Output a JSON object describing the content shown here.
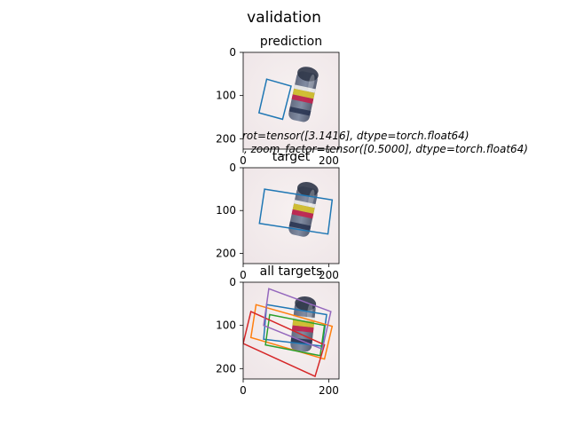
{
  "figure": {
    "suptitle": "validation",
    "annotation_line1": "rot=tensor([3.1416], dtype=torch.float64)",
    "annotation_line2": ", zoom_factor=tensor([0.5000], dtype=torch.float64)"
  },
  "chart_data": [
    {
      "type": "image",
      "title": "prediction",
      "xlim": [
        0,
        224
      ],
      "ylim": [
        224,
        0
      ],
      "xticks": [
        0,
        200
      ],
      "yticks": [
        0,
        100,
        200
      ],
      "boxes": [
        {
          "color": "#1f77b4",
          "points": [
            [
              55,
              62
            ],
            [
              112,
              78
            ],
            [
              92,
              155
            ],
            [
              37,
              140
            ]
          ]
        }
      ]
    },
    {
      "type": "image",
      "title": "target",
      "xlim": [
        0,
        224
      ],
      "ylim": [
        224,
        0
      ],
      "xticks": [
        0,
        200
      ],
      "yticks": [
        0,
        100,
        200
      ],
      "boxes": [
        {
          "color": "#1f77b4",
          "points": [
            [
              50,
              50
            ],
            [
              208,
              75
            ],
            [
              198,
              155
            ],
            [
              38,
              130
            ]
          ]
        }
      ]
    },
    {
      "type": "image",
      "title": "all targets",
      "xlim": [
        0,
        224
      ],
      "ylim": [
        224,
        0
      ],
      "xticks": [
        0,
        200
      ],
      "yticks": [
        0,
        100,
        200
      ],
      "boxes": [
        {
          "color": "#1f77b4",
          "points": [
            [
              55,
              52
            ],
            [
              195,
              75
            ],
            [
              185,
              148
            ],
            [
              48,
              132
            ]
          ]
        },
        {
          "color": "#ff7f0e",
          "points": [
            [
              30,
              52
            ],
            [
              208,
              102
            ],
            [
              190,
              178
            ],
            [
              18,
              128
            ]
          ]
        },
        {
          "color": "#2ca02c",
          "points": [
            [
              62,
              75
            ],
            [
              190,
              100
            ],
            [
              180,
              170
            ],
            [
              52,
              145
            ]
          ]
        },
        {
          "color": "#d62728",
          "points": [
            [
              18,
              68
            ],
            [
              190,
              145
            ],
            [
              168,
              218
            ],
            [
              0,
              142
            ]
          ]
        },
        {
          "color": "#9467bd",
          "points": [
            [
              60,
              15
            ],
            [
              205,
              68
            ],
            [
              185,
              155
            ],
            [
              48,
              100
            ]
          ]
        }
      ]
    }
  ]
}
